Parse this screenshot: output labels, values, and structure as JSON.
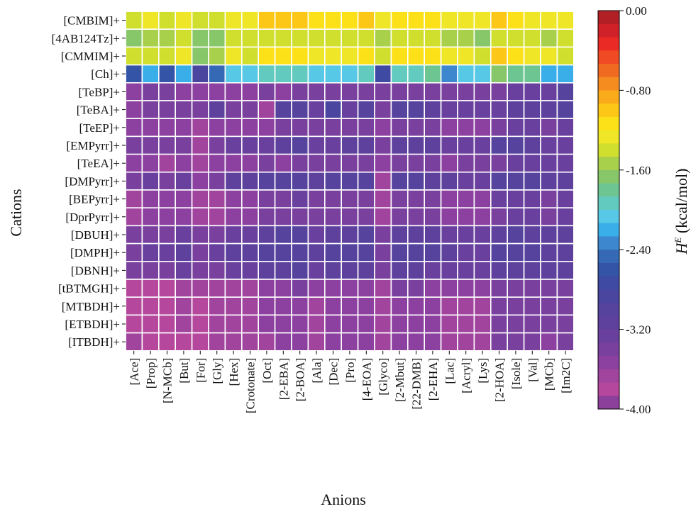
{
  "chart_data": {
    "type": "heatmap",
    "xlabel": "Anions",
    "ylabel": "Cations",
    "colorbar_label": "kcal/mol",
    "colorbar_label_symbol": "H",
    "colorbar_label_superscript": "E",
    "colorbar_range": [
      -4.0,
      0.0
    ],
    "colorbar_ticks": [
      "0.00",
      "-0.80",
      "-1.60",
      "-2.40",
      "-3.20",
      "-4.00"
    ],
    "colorbar_tick_values": [
      0.0,
      -0.8,
      -1.6,
      -2.4,
      -3.2,
      -4.0
    ],
    "colorbar_colors": [
      "#b02025",
      "#cf2127",
      "#ea2a24",
      "#ef4a23",
      "#f16a22",
      "#f58c1f",
      "#f9ab1c",
      "#fcc716",
      "#fde118",
      "#eee626",
      "#d0df2d",
      "#a9d04b",
      "#88c66a",
      "#6dc592",
      "#62cabf",
      "#57c8e5",
      "#3aaee9",
      "#3d87cf",
      "#3569b6",
      "#3354a7",
      "#3f4aa3",
      "#4a459f",
      "#55439e",
      "#5e419d",
      "#6a409e",
      "#7a409e",
      "#8c409f",
      "#a1449e",
      "#b5489c",
      "#8c409b"
    ],
    "anions": [
      "[Ace]",
      "[Prop]",
      "[N-MCb]",
      "[But]",
      "[For]",
      "[Gly]",
      "[Hex]",
      "[Crotonate]",
      "[Oct]",
      "[2-EBA]",
      "[2-BOA]",
      "[Ala]",
      "[Dec]",
      "[Pro]",
      "[4-EOA]",
      "[Glyco]",
      "[2-Mbut]",
      "[22-DMB]",
      "[2-EHA]",
      "[Lac]",
      "[Acryl]",
      "[Lys]",
      "[2-HOA]",
      "[Isole]",
      "[Val]",
      "[MCb]",
      "[Im2C]"
    ],
    "cations": [
      "[CMBIM]+",
      "[4AB124Tz]+",
      "[CMMIM]+",
      "[Ch]+",
      "[TeBP]+",
      "[TeBA]+",
      "[TeEP]+",
      "[EMPyrr]+",
      "[TeEA]+",
      "[DMPyrr]+",
      "[BEPyrr]+",
      "[DprPyrr]+",
      "[DBUH]+",
      "[DMPH]+",
      "[DBNH]+",
      "[tBTMGH]+",
      "[MTBDH]+",
      "[ETBDH]+",
      "[ITBDH]+"
    ],
    "values": [
      [
        -1.35,
        -1.3,
        -1.4,
        -1.3,
        -1.45,
        -1.35,
        -1.25,
        -1.2,
        -1.05,
        -1.0,
        -1.05,
        -1.15,
        -1.1,
        -1.1,
        -1.05,
        -1.25,
        -1.1,
        -1.1,
        -1.15,
        -1.25,
        -1.2,
        -1.25,
        -0.95,
        -1.1,
        -1.25,
        -1.25,
        -1.3
      ],
      [
        -1.6,
        -1.5,
        -1.55,
        -1.45,
        -1.6,
        -1.65,
        -1.4,
        -1.45,
        -1.35,
        -1.35,
        -1.35,
        -1.45,
        -1.4,
        -1.4,
        -1.4,
        -1.55,
        -1.4,
        -1.4,
        -1.45,
        -1.5,
        -1.5,
        -1.6,
        -1.35,
        -1.35,
        -1.4,
        -1.5,
        -1.45
      ],
      [
        -1.45,
        -1.4,
        -1.45,
        -1.3,
        -1.6,
        -1.55,
        -1.3,
        -1.35,
        -1.15,
        -1.1,
        -1.15,
        -1.25,
        -1.2,
        -1.2,
        -1.15,
        -1.4,
        -1.1,
        -1.1,
        -1.15,
        -1.3,
        -1.3,
        -1.35,
        -0.95,
        -1.1,
        -1.2,
        -1.3,
        -1.35
      ],
      [
        -2.65,
        -2.25,
        -2.55,
        -2.15,
        -2.85,
        -2.5,
        -2.0,
        -2.0,
        -1.95,
        -1.9,
        -1.9,
        -2.1,
        -2.05,
        -2.0,
        -1.9,
        -2.7,
        -1.9,
        -1.95,
        -1.75,
        -2.3,
        -2.1,
        -2.0,
        -1.7,
        -1.75,
        -1.8,
        -2.15,
        -2.2
      ],
      [
        -3.5,
        -3.45,
        -3.45,
        -3.5,
        -3.55,
        -3.5,
        -3.5,
        -3.5,
        -3.45,
        -3.5,
        -3.4,
        -3.45,
        -3.45,
        -3.45,
        -3.45,
        -3.45,
        -3.4,
        -3.4,
        -3.45,
        -3.45,
        -3.45,
        -3.45,
        -3.35,
        -3.25,
        -3.25,
        -3.2,
        -3.05
      ],
      [
        -3.5,
        -3.45,
        -3.4,
        -3.35,
        -3.45,
        -3.1,
        -3.4,
        -3.45,
        -3.6,
        -3.05,
        -2.95,
        -3.2,
        -2.9,
        -3.2,
        -2.95,
        -3.4,
        -3.0,
        -2.95,
        -3.1,
        -3.25,
        -3.25,
        -3.25,
        -3.25,
        -3.15,
        -3.1,
        -3.1,
        -3.0
      ],
      [
        -3.55,
        -3.55,
        -3.55,
        -3.55,
        -3.6,
        -3.55,
        -3.55,
        -3.5,
        -3.55,
        -3.45,
        -3.4,
        -3.45,
        -3.45,
        -3.45,
        -3.4,
        -3.5,
        -3.4,
        -3.4,
        -3.45,
        -3.5,
        -3.5,
        -3.5,
        -3.4,
        -3.3,
        -3.3,
        -3.35,
        -3.3
      ],
      [
        -3.45,
        -3.4,
        -3.4,
        -3.35,
        -3.6,
        -3.45,
        -3.3,
        -3.3,
        -3.2,
        -3.1,
        -3.05,
        -3.25,
        -3.2,
        -3.15,
        -3.1,
        -3.45,
        -3.1,
        -3.1,
        -3.15,
        -3.25,
        -3.25,
        -3.3,
        -3.05,
        -3.05,
        -3.1,
        -3.2,
        -3.2
      ],
      [
        -3.55,
        -3.55,
        -3.6,
        -3.5,
        -3.65,
        -3.55,
        -3.5,
        -3.55,
        -3.45,
        -3.5,
        -3.35,
        -3.4,
        -3.4,
        -3.45,
        -3.4,
        -3.55,
        -3.35,
        -3.4,
        -3.4,
        -3.5,
        -3.45,
        -3.45,
        -3.35,
        -3.25,
        -3.3,
        -3.3,
        -3.25
      ],
      [
        -3.4,
        -3.3,
        -3.35,
        -3.2,
        -3.55,
        -3.4,
        -3.1,
        -3.15,
        -3.05,
        -3.0,
        -2.95,
        -3.15,
        -3.05,
        -3.0,
        -3.0,
        -3.7,
        -2.95,
        -3.0,
        -3.1,
        -3.15,
        -3.2,
        -3.2,
        -3.05,
        -3.0,
        -3.05,
        -3.15,
        -3.15
      ],
      [
        -3.6,
        -3.55,
        -3.55,
        -3.5,
        -3.65,
        -3.6,
        -3.5,
        -3.5,
        -3.4,
        -3.35,
        -3.3,
        -3.45,
        -3.4,
        -3.4,
        -3.35,
        -3.6,
        -3.35,
        -3.35,
        -3.4,
        -3.5,
        -3.5,
        -3.5,
        -3.3,
        -3.25,
        -3.25,
        -3.35,
        -3.3
      ],
      [
        -3.6,
        -3.55,
        -3.55,
        -3.5,
        -3.65,
        -3.6,
        -3.5,
        -3.5,
        -3.45,
        -3.4,
        -3.35,
        -3.45,
        -3.45,
        -3.4,
        -3.35,
        -3.6,
        -3.35,
        -3.35,
        -3.4,
        -3.5,
        -3.5,
        -3.5,
        -3.35,
        -3.25,
        -3.25,
        -3.35,
        -3.3
      ],
      [
        -3.4,
        -3.35,
        -3.35,
        -3.25,
        -3.45,
        -3.35,
        -3.2,
        -3.2,
        -3.1,
        -3.05,
        -3.0,
        -3.2,
        -3.1,
        -3.1,
        -3.05,
        -3.4,
        -3.1,
        -3.1,
        -3.15,
        -3.25,
        -3.25,
        -3.25,
        -3.1,
        -3.05,
        -3.1,
        -3.15,
        -3.15
      ],
      [
        -3.35,
        -3.25,
        -3.3,
        -3.15,
        -3.4,
        -3.3,
        -3.1,
        -3.1,
        -3.0,
        -3.0,
        -2.95,
        -3.1,
        -3.0,
        -3.0,
        -3.0,
        -3.35,
        -3.0,
        -3.0,
        -3.05,
        -3.15,
        -3.2,
        -3.2,
        -3.05,
        -3.0,
        -3.05,
        -3.1,
        -3.1
      ],
      [
        -3.4,
        -3.35,
        -3.35,
        -3.25,
        -3.45,
        -3.35,
        -3.2,
        -3.25,
        -3.15,
        -3.1,
        -3.05,
        -3.2,
        -3.15,
        -3.15,
        -3.1,
        -3.4,
        -3.15,
        -3.15,
        -3.2,
        -3.25,
        -3.25,
        -3.25,
        -3.15,
        -3.1,
        -3.1,
        -3.15,
        -3.15
      ],
      [
        -3.8,
        -3.75,
        -3.75,
        -3.65,
        -3.7,
        -3.65,
        -3.6,
        -3.6,
        -3.5,
        -3.5,
        -3.45,
        -3.55,
        -3.5,
        -3.5,
        -3.5,
        -3.6,
        -3.45,
        -3.45,
        -3.5,
        -3.55,
        -3.55,
        -3.55,
        -3.4,
        -3.35,
        -3.4,
        -3.4,
        -3.4
      ],
      [
        -3.85,
        -3.8,
        -3.8,
        -3.7,
        -3.75,
        -3.7,
        -3.65,
        -3.65,
        -3.55,
        -3.55,
        -3.5,
        -3.6,
        -3.55,
        -3.55,
        -3.55,
        -3.65,
        -3.5,
        -3.5,
        -3.55,
        -3.6,
        -3.6,
        -3.6,
        -3.45,
        -3.4,
        -3.45,
        -3.45,
        -3.45
      ],
      [
        -3.8,
        -3.8,
        -3.75,
        -3.7,
        -3.75,
        -3.7,
        -3.65,
        -3.65,
        -3.55,
        -3.55,
        -3.5,
        -3.6,
        -3.55,
        -3.55,
        -3.55,
        -3.65,
        -3.5,
        -3.5,
        -3.55,
        -3.6,
        -3.6,
        -3.6,
        -3.45,
        -3.4,
        -3.45,
        -3.45,
        -3.45
      ],
      [
        -3.7,
        -3.85,
        -3.85,
        -3.75,
        -3.75,
        -3.7,
        -3.7,
        -3.65,
        -3.6,
        -3.55,
        -3.55,
        -3.6,
        -3.55,
        -3.55,
        -3.55,
        -3.65,
        -3.5,
        -3.5,
        -3.55,
        -3.6,
        -3.6,
        -3.6,
        -3.45,
        -3.45,
        -3.45,
        -3.5,
        -3.45
      ]
    ]
  }
}
